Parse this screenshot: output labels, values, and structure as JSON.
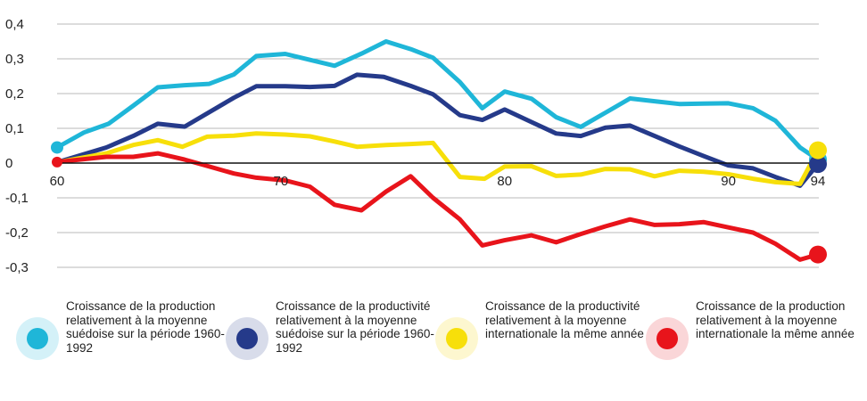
{
  "chart_data": {
    "type": "line",
    "title": "",
    "xlabel": "",
    "ylabel": "",
    "xlim": [
      60,
      95
    ],
    "ylim": [
      -0.3,
      0.4
    ],
    "yticks": [
      {
        "value": 0.4,
        "label": "0,4"
      },
      {
        "value": 0.3,
        "label": "0,3"
      },
      {
        "value": 0.2,
        "label": "0,2"
      },
      {
        "value": 0.1,
        "label": "0,1"
      },
      {
        "value": 0,
        "label": "0"
      },
      {
        "value": -0.1,
        "label": "-0,1"
      },
      {
        "value": -0.2,
        "label": "-0,2"
      },
      {
        "value": -0.3,
        "label": "-0,3"
      }
    ],
    "xticks": [
      {
        "value": 60,
        "label": "60"
      },
      {
        "value": 70,
        "label": "70"
      },
      {
        "value": 80,
        "label": "80"
      },
      {
        "value": 90,
        "label": "90"
      },
      {
        "value": 94,
        "label": "94"
      }
    ],
    "grid": true,
    "legend_position": "bottom",
    "series": [
      {
        "name": "Croissance de la production relativement à la moyenne suédoise sur la période 1960-1992",
        "color": "#1fb6d8",
        "halo": "#d4f1f8",
        "x": [
          60,
          61.2,
          62.3,
          63.4,
          64.5,
          65.7,
          66.8,
          67.9,
          68.9,
          70.2,
          71.3,
          72.4,
          73.6,
          74.7,
          75.8,
          76.8,
          78,
          79,
          80,
          81.2,
          82.3,
          83.4,
          84.5,
          85.6,
          86.7,
          87.8,
          88.9,
          90,
          91.1,
          92.1,
          93.2,
          94
        ],
        "y": [
          0.045,
          0.088,
          0.113,
          0.165,
          0.218,
          0.224,
          0.228,
          0.255,
          0.308,
          0.314,
          0.297,
          0.28,
          0.315,
          0.35,
          0.328,
          0.303,
          0.233,
          0.158,
          0.206,
          0.185,
          0.132,
          0.104,
          0.145,
          0.186,
          0.178,
          0.17,
          0.171,
          0.172,
          0.158,
          0.122,
          0.045,
          0.01
        ]
      },
      {
        "name": "Croissance de la productivité relativement à la moyenne suédoise sur la période 1960-1992",
        "color": "#253a8a",
        "halo": "#d8dcea",
        "x": [
          60,
          62.2,
          63.4,
          64.5,
          65.7,
          67.9,
          68.9,
          70.2,
          71.3,
          72.4,
          73.4,
          74.6,
          75.8,
          76.8,
          78,
          79,
          80,
          81.2,
          82.3,
          83.4,
          84.5,
          85.6,
          86.7,
          87.8,
          88.9,
          90,
          91.1,
          92.1,
          93.2,
          94
        ],
        "y": [
          0.002,
          0.045,
          0.078,
          0.113,
          0.105,
          0.188,
          0.221,
          0.221,
          0.219,
          0.222,
          0.254,
          0.248,
          0.222,
          0.198,
          0.138,
          0.124,
          0.154,
          0.118,
          0.085,
          0.078,
          0.102,
          0.108,
          0.078,
          0.048,
          0.02,
          -0.007,
          -0.015,
          -0.04,
          -0.065,
          -0.003
        ]
      },
      {
        "name": "Croissance de la productivité relativement à la moyenne internationale la même année",
        "color": "#f7df0a",
        "halo": "#fdf7cf",
        "x": [
          60,
          62.2,
          63.4,
          64.5,
          65.6,
          66.7,
          67.9,
          68.9,
          70.2,
          71.3,
          72.4,
          73.4,
          74.7,
          75.8,
          76.8,
          78,
          79.1,
          80,
          81.2,
          82.3,
          83.4,
          84.5,
          85.6,
          86.7,
          87.8,
          88.9,
          90,
          91.1,
          92.1,
          93.2,
          94
        ],
        "y": [
          0.002,
          0.028,
          0.052,
          0.066,
          0.047,
          0.076,
          0.079,
          0.085,
          0.082,
          0.077,
          0.062,
          0.047,
          0.052,
          0.055,
          0.058,
          -0.04,
          -0.045,
          -0.01,
          -0.009,
          -0.037,
          -0.033,
          -0.017,
          -0.018,
          -0.038,
          -0.022,
          -0.025,
          -0.032,
          -0.045,
          -0.055,
          -0.06,
          0.037
        ]
      },
      {
        "name": "Croissance de la production relativement à la moyenne internationale la même année",
        "color": "#e8141b",
        "halo": "#fad6d8",
        "x": [
          60,
          62.2,
          63.4,
          64.5,
          65.7,
          66.8,
          67.9,
          68.9,
          70.2,
          71.3,
          72.4,
          73.6,
          74.7,
          75.8,
          76.8,
          78,
          79,
          80,
          81.2,
          82.3,
          83.4,
          84.5,
          85.6,
          86.7,
          87.8,
          88.9,
          90,
          91.1,
          92.1,
          93.2,
          94
        ],
        "y": [
          0.003,
          0.018,
          0.018,
          0.028,
          0.01,
          -0.01,
          -0.03,
          -0.042,
          -0.05,
          -0.068,
          -0.12,
          -0.136,
          -0.082,
          -0.038,
          -0.1,
          -0.162,
          -0.237,
          -0.222,
          -0.208,
          -0.228,
          -0.204,
          -0.182,
          -0.162,
          -0.178,
          -0.176,
          -0.17,
          -0.185,
          -0.2,
          -0.232,
          -0.278,
          -0.263
        ]
      }
    ]
  },
  "legend": [
    {
      "label": "Croissance de la production relativement à la moyenne suédoise sur la période 1960-1992",
      "color": "#1fb6d8",
      "halo": "#d4f1f8"
    },
    {
      "label": "Croissance de la productivité relativement à la moyenne suédoise sur la période 1960-1992",
      "color": "#253a8a",
      "halo": "#d8dcea"
    },
    {
      "label": "Croissance de la productivité relativement à la moyenne internationale la même année",
      "color": "#f7df0a",
      "halo": "#fdf7cf"
    },
    {
      "label": "Croissance de la production relativement à la moyenne internationale la même année",
      "color": "#e8141b",
      "halo": "#fad6d8"
    }
  ]
}
